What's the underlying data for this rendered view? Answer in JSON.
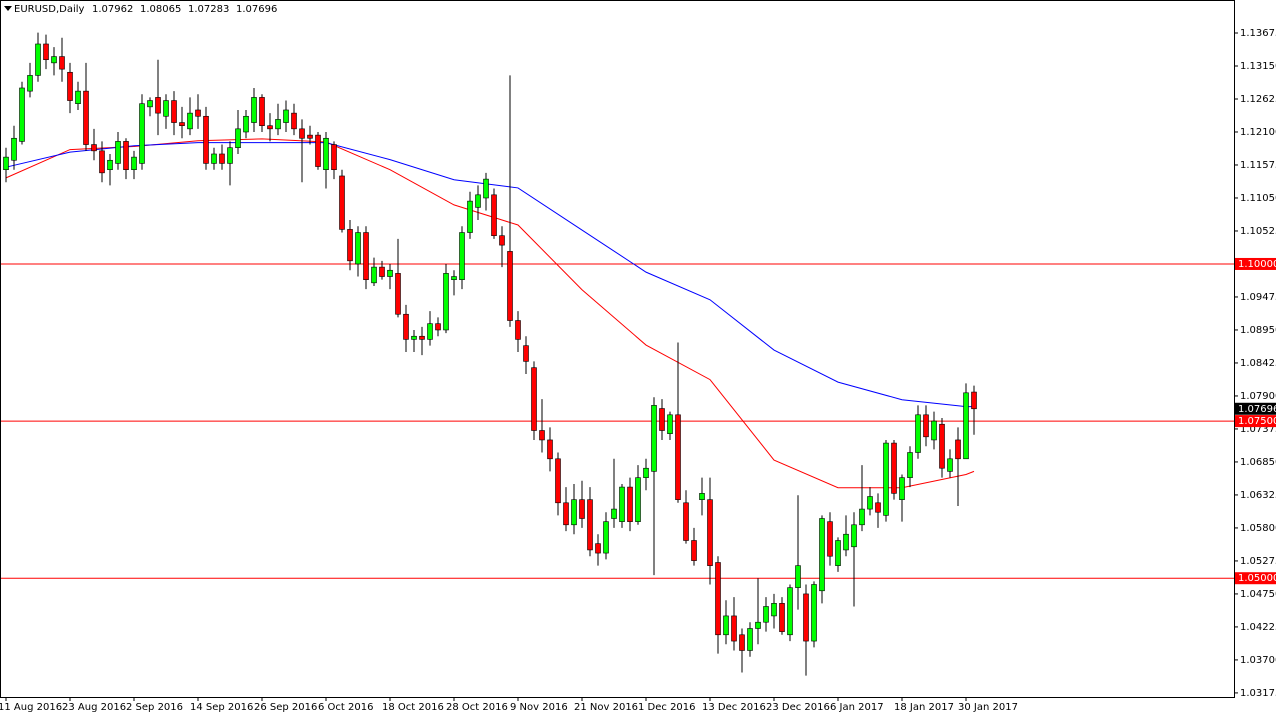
{
  "chart_data": {
    "type": "candlestick",
    "symbol": "EURUSD,Daily",
    "categories": [
      "11 Aug 2016",
      null,
      null,
      null,
      null,
      null,
      null,
      null,
      "23 Aug 2016",
      null,
      null,
      null,
      null,
      null,
      null,
      null,
      "2 Sep 2016",
      null,
      null,
      null,
      null,
      null,
      null,
      null,
      "14 Sep 2016",
      null,
      null,
      null,
      null,
      null,
      null,
      null,
      "26 Sep 2016",
      null,
      null,
      null,
      null,
      null,
      null,
      null,
      "6 Oct 2016",
      null,
      null,
      null,
      null,
      null,
      null,
      null,
      "18 Oct 2016",
      null,
      null,
      null,
      null,
      null,
      null,
      null,
      "28 Oct 2016",
      null,
      null,
      null,
      null,
      null,
      null,
      null,
      "9 Nov 2016",
      null,
      null,
      null,
      null,
      null,
      null,
      null,
      "21 Nov 2016",
      null,
      null,
      null,
      null,
      null,
      null,
      null,
      "1 Dec 2016",
      null,
      null,
      null,
      null,
      null,
      null,
      null,
      "13 Dec 2016",
      null,
      null,
      null,
      null,
      null,
      null,
      null,
      "23 Dec 2016",
      null,
      null,
      null,
      null,
      null,
      null,
      null,
      "6 Jan 2017",
      null,
      null,
      null,
      null,
      null,
      null,
      null,
      "18 Jan 2017",
      null,
      null,
      null,
      null,
      null,
      null,
      null,
      "30 Jan 2017",
      null
    ],
    "candles": [
      [
        1.115,
        1.1185,
        1.113,
        1.117
      ],
      [
        1.1165,
        1.122,
        1.115,
        1.12
      ],
      [
        1.1195,
        1.129,
        1.119,
        1.128
      ],
      [
        1.1275,
        1.132,
        1.1265,
        1.13
      ],
      [
        1.13,
        1.1368,
        1.129,
        1.135
      ],
      [
        1.135,
        1.1365,
        1.131,
        1.1325
      ],
      [
        1.132,
        1.1345,
        1.13,
        1.133
      ],
      [
        1.133,
        1.136,
        1.129,
        1.131
      ],
      [
        1.1305,
        1.132,
        1.124,
        1.126
      ],
      [
        1.1255,
        1.129,
        1.1245,
        1.1275
      ],
      [
        1.1275,
        1.132,
        1.118,
        1.119
      ],
      [
        1.119,
        1.1215,
        1.1165,
        1.118
      ],
      [
        1.118,
        1.1195,
        1.113,
        1.1145
      ],
      [
        1.115,
        1.1175,
        1.1125,
        1.1165
      ],
      [
        1.116,
        1.121,
        1.115,
        1.1195
      ],
      [
        1.1195,
        1.12,
        1.1135,
        1.115
      ],
      [
        1.115,
        1.118,
        1.1135,
        1.117
      ],
      [
        1.116,
        1.127,
        1.115,
        1.1255
      ],
      [
        1.125,
        1.1265,
        1.1235,
        1.126
      ],
      [
        1.1265,
        1.1325,
        1.1205,
        1.124
      ],
      [
        1.1235,
        1.127,
        1.1215,
        1.126
      ],
      [
        1.126,
        1.1275,
        1.1205,
        1.1225
      ],
      [
        1.1225,
        1.125,
        1.12,
        1.122
      ],
      [
        1.1215,
        1.1265,
        1.1205,
        1.124
      ],
      [
        1.1245,
        1.127,
        1.1215,
        1.1235
      ],
      [
        1.1235,
        1.125,
        1.115,
        1.116
      ],
      [
        1.116,
        1.1185,
        1.115,
        1.1175
      ],
      [
        1.1175,
        1.119,
        1.115,
        1.116
      ],
      [
        1.116,
        1.1195,
        1.1125,
        1.1185
      ],
      [
        1.1185,
        1.1245,
        1.1175,
        1.1215
      ],
      [
        1.121,
        1.1245,
        1.12,
        1.1235
      ],
      [
        1.1225,
        1.128,
        1.121,
        1.1265
      ],
      [
        1.1265,
        1.127,
        1.121,
        1.122
      ],
      [
        1.122,
        1.124,
        1.1195,
        1.1215
      ],
      [
        1.1215,
        1.1255,
        1.1205,
        1.123
      ],
      [
        1.1225,
        1.126,
        1.121,
        1.1245
      ],
      [
        1.124,
        1.1255,
        1.1205,
        1.1215
      ],
      [
        1.1215,
        1.123,
        1.113,
        1.12
      ],
      [
        1.1205,
        1.122,
        1.119,
        1.12
      ],
      [
        1.1205,
        1.121,
        1.115,
        1.1155
      ],
      [
        1.115,
        1.121,
        1.112,
        1.12
      ],
      [
        1.119,
        1.1195,
        1.1135,
        1.115
      ],
      [
        1.114,
        1.115,
        1.105,
        1.1055
      ],
      [
        1.1055,
        1.107,
        1.099,
        1.1005
      ],
      [
        1.1,
        1.106,
        1.098,
        1.105
      ],
      [
        1.105,
        1.106,
        1.096,
        1.0975
      ],
      [
        1.097,
        1.101,
        1.0965,
        1.0995
      ],
      [
        1.0995,
        1.1005,
        1.0975,
        1.098
      ],
      [
        1.098,
        1.1,
        1.096,
        1.099
      ],
      [
        1.0985,
        1.104,
        1.0915,
        1.092
      ],
      [
        1.092,
        1.0935,
        1.086,
        1.088
      ],
      [
        1.088,
        1.0895,
        1.086,
        1.0885
      ],
      [
        1.0885,
        1.09,
        1.0855,
        1.088
      ],
      [
        1.088,
        1.0925,
        1.087,
        1.0905
      ],
      [
        1.0905,
        1.0915,
        1.0885,
        1.0895
      ],
      [
        1.0895,
        1.1,
        1.089,
        1.0985
      ],
      [
        1.0975,
        1.099,
        1.095,
        1.098
      ],
      [
        1.0975,
        1.106,
        1.096,
        1.105
      ],
      [
        1.105,
        1.1115,
        1.104,
        1.11
      ],
      [
        1.109,
        1.1125,
        1.107,
        1.111
      ],
      [
        1.1105,
        1.1145,
        1.1085,
        1.1135
      ],
      [
        1.111,
        1.112,
        1.104,
        1.1045
      ],
      [
        1.1045,
        1.106,
        1.0995,
        1.103
      ],
      [
        1.102,
        1.13,
        1.09,
        1.091
      ],
      [
        1.091,
        1.0925,
        1.086,
        1.088
      ],
      [
        1.087,
        1.0885,
        1.0825,
        1.0845
      ],
      [
        1.0835,
        1.0845,
        1.072,
        1.0735
      ],
      [
        1.0735,
        1.0785,
        1.07,
        1.072
      ],
      [
        1.072,
        1.074,
        1.067,
        1.069
      ],
      [
        1.069,
        1.07,
        1.06,
        1.062
      ],
      [
        1.062,
        1.0645,
        1.0575,
        1.0585
      ],
      [
        1.0585,
        1.065,
        1.057,
        1.0625
      ],
      [
        1.0625,
        1.0655,
        1.058,
        1.0595
      ],
      [
        1.0625,
        1.0645,
        1.0535,
        1.0545
      ],
      [
        1.0555,
        1.057,
        1.052,
        1.054
      ],
      [
        1.054,
        1.0605,
        1.053,
        1.059
      ],
      [
        1.0595,
        1.069,
        1.058,
        1.061
      ],
      [
        1.059,
        1.065,
        1.058,
        1.0645
      ],
      [
        1.0645,
        1.066,
        1.0575,
        1.059
      ],
      [
        1.059,
        1.068,
        1.0585,
        1.066
      ],
      [
        1.066,
        1.069,
        1.064,
        1.0675
      ],
      [
        1.067,
        1.0788,
        1.0505,
        1.0775
      ],
      [
        1.077,
        1.0785,
        1.072,
        1.0735
      ],
      [
        1.073,
        1.0765,
        1.072,
        1.076
      ],
      [
        1.076,
        1.0875,
        1.062,
        1.0625
      ],
      [
        1.062,
        1.064,
        1.0555,
        1.056
      ],
      [
        1.056,
        1.058,
        1.052,
        1.0528
      ],
      [
        1.0625,
        1.066,
        1.06,
        1.0635
      ],
      [
        1.0625,
        1.066,
        1.049,
        1.052
      ],
      [
        1.0525,
        1.0535,
        1.038,
        1.041
      ],
      [
        1.041,
        1.0465,
        1.0395,
        1.044
      ],
      [
        1.044,
        1.047,
        1.0385,
        1.04
      ],
      [
        1.041,
        1.042,
        1.035,
        1.0385
      ],
      [
        1.0385,
        1.043,
        1.0375,
        1.042
      ],
      [
        1.042,
        1.05,
        1.0395,
        1.043
      ],
      [
        1.043,
        1.047,
        1.0415,
        1.0455
      ],
      [
        1.044,
        1.0475,
        1.042,
        1.046
      ],
      [
        1.046,
        1.047,
        1.041,
        1.0415
      ],
      [
        1.041,
        1.049,
        1.04,
        1.0485
      ],
      [
        1.0485,
        1.0632,
        1.045,
        1.052
      ],
      [
        1.0475,
        1.049,
        1.0345,
        1.04
      ],
      [
        1.04,
        1.0495,
        1.039,
        1.049
      ],
      [
        1.048,
        1.06,
        1.046,
        1.0595
      ],
      [
        1.059,
        1.0605,
        1.052,
        1.0535
      ],
      [
        1.052,
        1.0565,
        1.051,
        1.056
      ],
      [
        1.0545,
        1.06,
        1.0535,
        1.057
      ],
      [
        1.055,
        1.0605,
        1.0455,
        1.0585
      ],
      [
        1.0585,
        1.068,
        1.0575,
        1.061
      ],
      [
        1.061,
        1.0645,
        1.06,
        1.063
      ],
      [
        1.062,
        1.0635,
        1.058,
        1.0605
      ],
      [
        1.06,
        1.072,
        1.059,
        1.0715
      ],
      [
        1.0715,
        1.072,
        1.0625,
        1.0635
      ],
      [
        1.0625,
        1.0665,
        1.059,
        1.066
      ],
      [
        1.066,
        1.071,
        1.0645,
        1.07
      ],
      [
        1.07,
        1.0775,
        1.069,
        1.076
      ],
      [
        1.076,
        1.0775,
        1.071,
        1.0725
      ],
      [
        1.072,
        1.0765,
        1.0705,
        1.075
      ],
      [
        1.0745,
        1.0755,
        1.066,
        1.0675
      ],
      [
        1.067,
        1.0705,
        1.066,
        1.069
      ],
      [
        1.072,
        1.074,
        1.0615,
        1.069
      ],
      [
        1.069,
        1.081,
        1.069,
        1.0795
      ],
      [
        1.07962,
        1.08065,
        1.07283,
        1.07696
      ]
    ],
    "up_color": "#00ff00",
    "down_color": "#ff0000",
    "wick_color": "#000000",
    "lines": [
      {
        "color": "#ff0000",
        "x": [
          0,
          8,
          16,
          24,
          32,
          40,
          48,
          56,
          64,
          72,
          80,
          88,
          96,
          104,
          112,
          120,
          121
        ],
        "values": [
          1.1137,
          1.1182,
          1.1187,
          1.1196,
          1.1199,
          1.1194,
          1.115,
          1.1094,
          1.1062,
          1.0959,
          1.0871,
          1.0816,
          1.0688,
          1.0644,
          1.0644,
          1.0665,
          1.067
        ]
      },
      {
        "color": "#0000ff",
        "x": [
          0,
          8,
          16,
          24,
          32,
          40,
          48,
          56,
          64,
          72,
          80,
          88,
          96,
          104,
          112,
          120,
          121
        ],
        "values": [
          1.1154,
          1.1178,
          1.1188,
          1.1193,
          1.1193,
          1.1193,
          1.1166,
          1.1134,
          1.1121,
          1.1054,
          1.0987,
          1.0943,
          1.0863,
          1.0812,
          1.0784,
          1.0773,
          1.0773
        ]
      }
    ],
    "hlines": [
      {
        "value": 1.1,
        "label": "1.10000"
      },
      {
        "value": 1.075,
        "label": "1.07500"
      },
      {
        "value": 1.05,
        "label": "1.05000"
      }
    ],
    "hline_color": "#ff0000",
    "ylim": [
      1.0311,
      1.142
    ],
    "yticks": [
      1.13675,
      {
        "value": 1.1315,
        "label": "1.13150"
      },
      1.12625,
      {
        "value": 1.121,
        "label": "1.12100"
      },
      1.11575,
      {
        "value": 1.1105,
        "label": "1.11050"
      },
      1.10525,
      {
        "value": 1.1,
        "label": "1.10000"
      },
      1.09475,
      {
        "value": 1.0895,
        "label": "1.08950"
      },
      1.08425,
      {
        "value": 1.079,
        "label": "1.07900"
      },
      1.07375,
      {
        "value": 1.0685,
        "label": "1.06850"
      },
      1.06325,
      {
        "value": 1.058,
        "label": "1.05800"
      },
      1.05275,
      {
        "value": 1.0475,
        "label": "1.04750"
      },
      1.04225,
      {
        "value": 1.037,
        "label": "1.03700"
      },
      1.03175
    ]
  }
}
